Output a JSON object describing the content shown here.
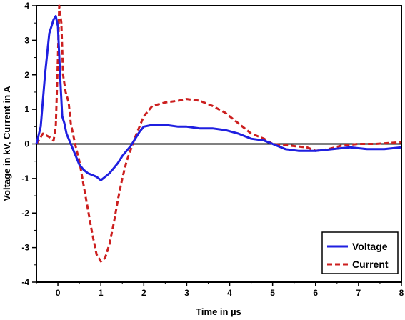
{
  "chart_data": {
    "type": "line",
    "xlabel": "Time in µs",
    "ylabel": "Voltage in kV, Current in A",
    "xlim": [
      -0.5,
      8
    ],
    "ylim": [
      -4,
      4
    ],
    "xticks": [
      0,
      1,
      2,
      3,
      4,
      5,
      6,
      7,
      8
    ],
    "yticks": [
      -4,
      -3,
      -2,
      -1,
      0,
      1,
      2,
      3,
      4
    ],
    "zero_line": true,
    "grid": false,
    "legend_position": "bottom-right",
    "series": [
      {
        "name": "Voltage",
        "color": "#1f1fe0",
        "style": "solid",
        "x": [
          -0.5,
          -0.4,
          -0.3,
          -0.2,
          -0.1,
          -0.05,
          0.0,
          0.05,
          0.1,
          0.15,
          0.2,
          0.3,
          0.4,
          0.5,
          0.6,
          0.7,
          0.8,
          0.9,
          1.0,
          1.1,
          1.2,
          1.3,
          1.4,
          1.5,
          1.6,
          1.7,
          1.8,
          1.9,
          2.0,
          2.2,
          2.5,
          2.8,
          3.0,
          3.3,
          3.6,
          3.9,
          4.2,
          4.5,
          4.8,
          5.0,
          5.3,
          5.6,
          6.0,
          6.4,
          6.8,
          7.2,
          7.6,
          8.0
        ],
        "y": [
          0.0,
          0.5,
          2.0,
          3.2,
          3.6,
          3.7,
          3.4,
          2.0,
          0.8,
          0.6,
          0.3,
          0.0,
          -0.3,
          -0.6,
          -0.75,
          -0.85,
          -0.9,
          -0.95,
          -1.05,
          -0.95,
          -0.85,
          -0.7,
          -0.55,
          -0.35,
          -0.2,
          -0.05,
          0.15,
          0.35,
          0.5,
          0.55,
          0.55,
          0.5,
          0.5,
          0.45,
          0.45,
          0.4,
          0.3,
          0.15,
          0.1,
          0.0,
          -0.15,
          -0.2,
          -0.2,
          -0.15,
          -0.1,
          -0.15,
          -0.15,
          -0.1
        ]
      },
      {
        "name": "Current",
        "color": "#cc1f1f",
        "style": "dashed",
        "x": [
          -0.5,
          -0.35,
          -0.2,
          -0.1,
          -0.05,
          0.0,
          0.03,
          0.08,
          0.12,
          0.18,
          0.25,
          0.3,
          0.4,
          0.5,
          0.6,
          0.7,
          0.8,
          0.9,
          1.0,
          1.1,
          1.2,
          1.3,
          1.4,
          1.5,
          1.6,
          1.7,
          1.8,
          1.9,
          2.0,
          2.2,
          2.5,
          2.8,
          3.0,
          3.3,
          3.6,
          3.9,
          4.2,
          4.5,
          4.8,
          5.0,
          5.4,
          5.8,
          6.0,
          6.3,
          6.6,
          7.0,
          7.4,
          8.0
        ],
        "y": [
          0.0,
          0.3,
          0.2,
          0.1,
          0.5,
          2.5,
          4.0,
          3.5,
          2.0,
          1.5,
          1.2,
          0.6,
          0.0,
          -0.5,
          -1.2,
          -1.9,
          -2.6,
          -3.2,
          -3.4,
          -3.3,
          -2.9,
          -2.3,
          -1.6,
          -1.0,
          -0.5,
          -0.15,
          0.2,
          0.5,
          0.8,
          1.1,
          1.2,
          1.25,
          1.3,
          1.25,
          1.1,
          0.9,
          0.6,
          0.3,
          0.15,
          0.0,
          -0.05,
          -0.1,
          -0.2,
          -0.15,
          -0.05,
          0.0,
          0.0,
          0.05
        ]
      }
    ]
  }
}
